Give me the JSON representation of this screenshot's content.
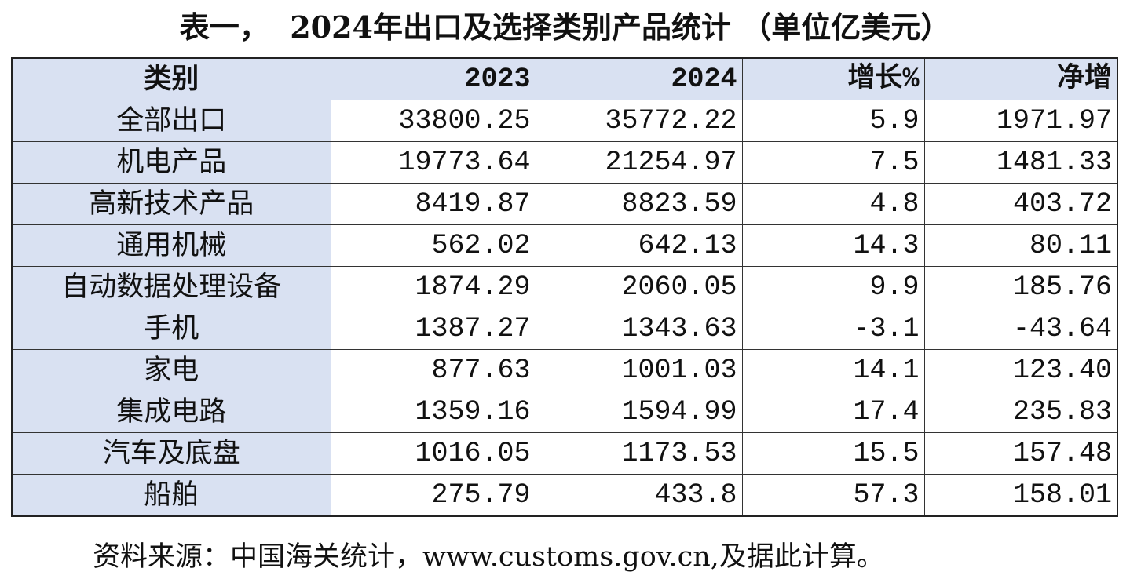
{
  "title": "表一，  2024年出口及选择类别产品统计 （单位亿美元）",
  "table": {
    "header": [
      "类别",
      "2023",
      "2024",
      "增长%",
      "净增"
    ],
    "rows": [
      [
        "全部出口",
        "33800.25",
        "35772.22",
        "5.9",
        "1971.97"
      ],
      [
        "机电产品",
        "19773.64",
        "21254.97",
        "7.5",
        "1481.33"
      ],
      [
        "高新技术产品",
        "8419.87",
        "8823.59",
        "4.8",
        "403.72"
      ],
      [
        "通用机械",
        "562.02",
        "642.13",
        "14.3",
        "80.11"
      ],
      [
        "自动数据处理设备",
        "1874.29",
        "2060.05",
        "9.9",
        "185.76"
      ],
      [
        "手机",
        "1387.27",
        "1343.63",
        "-3.1",
        "-43.64"
      ],
      [
        "家电",
        "877.63",
        "1001.03",
        "14.1",
        "123.40"
      ],
      [
        "集成电路",
        "1359.16",
        "1594.99",
        "17.4",
        "235.83"
      ],
      [
        "汽车及底盘",
        "1016.05",
        "1173.53",
        "15.5",
        "157.48"
      ],
      [
        "船舶",
        "275.79",
        "433.8",
        "57.3",
        "158.01"
      ]
    ]
  },
  "source": "资料来源：中国海关统计，www.customs.gov.cn,及据此计算。"
}
